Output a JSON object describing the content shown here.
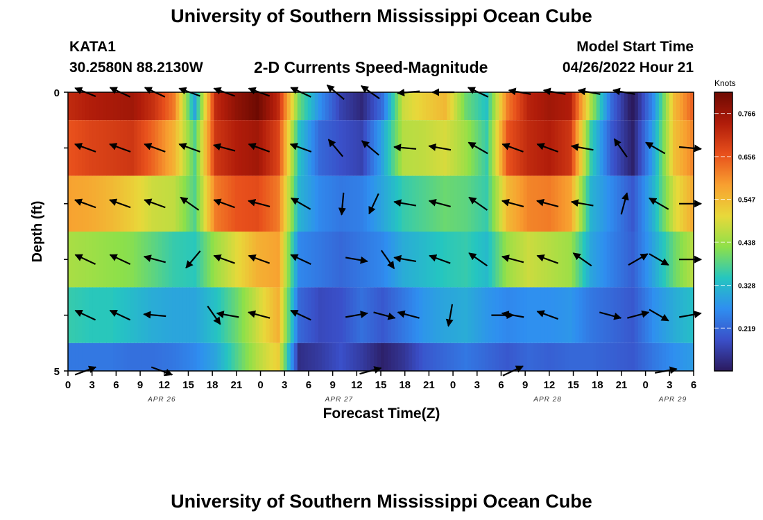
{
  "page": {
    "title": "University of Southern Mississippi Ocean Cube",
    "footer_title": "University of Southern Mississippi Ocean Cube",
    "station": "KATA1",
    "coords": "30.2580N  88.2130W",
    "model_label": "Model Start Time",
    "model_time": "04/26/2022 Hour 21"
  },
  "chart_data": {
    "type": "heatmap",
    "title": "2-D Currents Speed-Magnitude",
    "xlabel": "Forecast Time(Z)",
    "ylabel": "Depth (ft)",
    "units": "Knots",
    "x_hours": [
      0,
      90
    ],
    "x_tick_labels": [
      "0",
      "3",
      "6",
      "9",
      "12",
      "15",
      "18",
      "21",
      "0",
      "3",
      "6",
      "9",
      "12",
      "15",
      "18",
      "21",
      "0",
      "3",
      "6",
      "9",
      "12",
      "15",
      "18",
      "21",
      "0",
      "3",
      "6"
    ],
    "date_labels": [
      {
        "label": "APR 26",
        "hour": 13.5
      },
      {
        "label": "APR 27",
        "hour": 39
      },
      {
        "label": "APR 28",
        "hour": 69
      },
      {
        "label": "APR 29",
        "hour": 87
      }
    ],
    "y_tick_labels": [
      "0",
      "5"
    ],
    "ylim": [
      0,
      5
    ],
    "colorbar": {
      "range": [
        0.11,
        0.82
      ],
      "ticks": [
        0.766,
        0.656,
        0.547,
        0.438,
        0.328,
        0.219
      ],
      "tick_labels": [
        "0.766",
        "0.656",
        "0.547",
        "0.438",
        "0.328",
        "0.219"
      ],
      "colors": [
        "#2b1a5e",
        "#3a4fc8",
        "#2f8ef0",
        "#25c6c0",
        "#8de04a",
        "#e8d93a",
        "#f8a030",
        "#e8501c",
        "#b01c0a",
        "#6e0a02"
      ]
    },
    "depth_rows": [
      {
        "top": 0.0,
        "bottom": 0.5,
        "hours": [
          0,
          3,
          6,
          9,
          12,
          15,
          18,
          21,
          24,
          27,
          30,
          33,
          36,
          39,
          42,
          45,
          48,
          51,
          54,
          57,
          60,
          63,
          66,
          69,
          72,
          75,
          78,
          81,
          84,
          87,
          90
        ],
        "values": [
          0.72,
          0.74,
          0.75,
          0.76,
          0.71,
          0.62,
          0.3,
          0.72,
          0.78,
          0.82,
          0.72,
          0.4,
          0.27,
          0.17,
          0.13,
          0.23,
          0.48,
          0.52,
          0.55,
          0.4,
          0.34,
          0.62,
          0.73,
          0.76,
          0.74,
          0.45,
          0.22,
          0.1,
          0.27,
          0.55,
          0.66
        ]
      },
      {
        "top": 0.5,
        "bottom": 1.5,
        "hours": [
          0,
          3,
          6,
          9,
          12,
          15,
          18,
          21,
          24,
          27,
          30,
          33,
          36,
          39,
          42,
          45,
          48,
          51,
          54,
          57,
          60,
          63,
          66,
          69,
          72,
          75,
          78,
          81,
          84,
          87,
          90
        ],
        "values": [
          0.66,
          0.68,
          0.69,
          0.7,
          0.64,
          0.56,
          0.38,
          0.7,
          0.74,
          0.76,
          0.68,
          0.34,
          0.22,
          0.19,
          0.17,
          0.3,
          0.46,
          0.47,
          0.49,
          0.44,
          0.36,
          0.66,
          0.72,
          0.74,
          0.7,
          0.36,
          0.2,
          0.12,
          0.3,
          0.54,
          0.62
        ]
      },
      {
        "top": 1.5,
        "bottom": 2.5,
        "hours": [
          0,
          3,
          6,
          9,
          12,
          15,
          18,
          21,
          24,
          27,
          30,
          33,
          36,
          39,
          42,
          45,
          48,
          51,
          54,
          57,
          60,
          63,
          66,
          69,
          72,
          75,
          78,
          81,
          84,
          87,
          90
        ],
        "values": [
          0.58,
          0.57,
          0.55,
          0.52,
          0.48,
          0.47,
          0.38,
          0.62,
          0.66,
          0.67,
          0.62,
          0.32,
          0.26,
          0.24,
          0.25,
          0.3,
          0.36,
          0.38,
          0.4,
          0.39,
          0.36,
          0.55,
          0.61,
          0.62,
          0.58,
          0.32,
          0.26,
          0.2,
          0.32,
          0.49,
          0.58
        ]
      },
      {
        "top": 2.5,
        "bottom": 3.5,
        "hours": [
          0,
          3,
          6,
          9,
          12,
          15,
          18,
          21,
          24,
          27,
          30,
          33,
          36,
          39,
          42,
          45,
          48,
          51,
          54,
          57,
          60,
          63,
          66,
          69,
          72,
          75,
          78,
          81,
          84,
          87,
          90
        ],
        "values": [
          0.45,
          0.44,
          0.43,
          0.42,
          0.39,
          0.36,
          0.35,
          0.44,
          0.5,
          0.56,
          0.58,
          0.26,
          0.24,
          0.22,
          0.24,
          0.26,
          0.31,
          0.33,
          0.35,
          0.36,
          0.33,
          0.44,
          0.48,
          0.46,
          0.44,
          0.3,
          0.25,
          0.21,
          0.3,
          0.4,
          0.47
        ]
      },
      {
        "top": 3.5,
        "bottom": 4.5,
        "hours": [
          0,
          3,
          6,
          9,
          12,
          15,
          18,
          21,
          24,
          27,
          30,
          33,
          36,
          39,
          42,
          45,
          48,
          51,
          54,
          57,
          60,
          63,
          66,
          69,
          72,
          75,
          78,
          81,
          84,
          87,
          90
        ],
        "values": [
          0.36,
          0.35,
          0.35,
          0.33,
          0.31,
          0.3,
          0.3,
          0.34,
          0.4,
          0.48,
          0.56,
          0.22,
          0.18,
          0.19,
          0.23,
          0.2,
          0.24,
          0.28,
          0.3,
          0.31,
          0.28,
          0.26,
          0.27,
          0.27,
          0.28,
          0.24,
          0.22,
          0.2,
          0.27,
          0.31,
          0.34
        ]
      },
      {
        "top": 4.5,
        "bottom": 5.0,
        "hours": [
          0,
          3,
          6,
          9,
          12,
          15,
          18,
          21,
          24,
          27,
          30,
          33,
          36,
          39,
          42,
          45,
          48,
          51,
          54,
          57,
          60,
          63,
          66,
          69,
          72,
          75,
          78,
          81,
          84,
          87,
          90
        ],
        "values": [
          0.24,
          0.24,
          0.24,
          0.23,
          0.23,
          0.24,
          0.26,
          0.3,
          0.38,
          0.46,
          0.52,
          0.14,
          0.16,
          0.19,
          0.16,
          0.12,
          0.15,
          0.2,
          0.22,
          0.24,
          0.22,
          0.2,
          0.22,
          0.21,
          0.22,
          0.22,
          0.21,
          0.2,
          0.24,
          0.27,
          0.29
        ]
      }
    ],
    "vectors": [
      {
        "depth": 0.0,
        "hour": 2.5,
        "dir": -158,
        "len": 0.32
      },
      {
        "depth": 0.0,
        "hour": 7.5,
        "dir": -155,
        "len": 0.32
      },
      {
        "depth": 0.0,
        "hour": 12.5,
        "dir": -155,
        "len": 0.32
      },
      {
        "depth": 0.0,
        "hour": 17.5,
        "dir": -160,
        "len": 0.32
      },
      {
        "depth": 0.0,
        "hour": 22.5,
        "dir": -160,
        "len": 0.32
      },
      {
        "depth": 0.0,
        "hour": 27.5,
        "dir": -160,
        "len": 0.32
      },
      {
        "depth": 0.0,
        "hour": 33.5,
        "dir": -155,
        "len": 0.32
      },
      {
        "depth": 0.0,
        "hour": 38.5,
        "dir": -140,
        "len": 0.32
      },
      {
        "depth": 0.0,
        "hour": 43.5,
        "dir": -145,
        "len": 0.32
      },
      {
        "depth": 0.0,
        "hour": 49,
        "dir": 175,
        "len": 0.32
      },
      {
        "depth": 0.0,
        "hour": 54,
        "dir": -180,
        "len": 0.32
      },
      {
        "depth": 0.0,
        "hour": 59,
        "dir": -155,
        "len": 0.32
      },
      {
        "depth": 0.0,
        "hour": 65,
        "dir": -170,
        "len": 0.32
      },
      {
        "depth": 0.0,
        "hour": 70,
        "dir": -170,
        "len": 0.32
      },
      {
        "depth": 0.0,
        "hour": 75,
        "dir": -170,
        "len": 0.32
      },
      {
        "depth": 0.0,
        "hour": 80,
        "dir": -170,
        "len": 0.32
      },
      {
        "depth": 1.0,
        "hour": 2.5,
        "dir": -160,
        "len": 0.32
      },
      {
        "depth": 1.0,
        "hour": 7.5,
        "dir": -160,
        "len": 0.32
      },
      {
        "depth": 1.0,
        "hour": 12.5,
        "dir": -160,
        "len": 0.32
      },
      {
        "depth": 1.0,
        "hour": 17.5,
        "dir": -160,
        "len": 0.32
      },
      {
        "depth": 1.0,
        "hour": 22.5,
        "dir": -165,
        "len": 0.32
      },
      {
        "depth": 1.0,
        "hour": 27.5,
        "dir": -160,
        "len": 0.32
      },
      {
        "depth": 1.0,
        "hour": 33.5,
        "dir": -160,
        "len": 0.32
      },
      {
        "depth": 1.0,
        "hour": 38.5,
        "dir": -130,
        "len": 0.32
      },
      {
        "depth": 1.0,
        "hour": 43.5,
        "dir": -140,
        "len": 0.32
      },
      {
        "depth": 1.0,
        "hour": 48.5,
        "dir": -175,
        "len": 0.32
      },
      {
        "depth": 1.0,
        "hour": 53.5,
        "dir": -170,
        "len": 0.32
      },
      {
        "depth": 1.0,
        "hour": 59,
        "dir": -150,
        "len": 0.32
      },
      {
        "depth": 1.0,
        "hour": 64,
        "dir": -160,
        "len": 0.32
      },
      {
        "depth": 1.0,
        "hour": 69,
        "dir": -160,
        "len": 0.32
      },
      {
        "depth": 1.0,
        "hour": 74,
        "dir": -170,
        "len": 0.32
      },
      {
        "depth": 1.0,
        "hour": 79.5,
        "dir": -125,
        "len": 0.32
      },
      {
        "depth": 1.0,
        "hour": 84.5,
        "dir": -150,
        "len": 0.32
      },
      {
        "depth": 1.0,
        "hour": 89.5,
        "dir": 5,
        "len": 0.32
      },
      {
        "depth": 2.0,
        "hour": 2.5,
        "dir": -160,
        "len": 0.32
      },
      {
        "depth": 2.0,
        "hour": 7.5,
        "dir": -160,
        "len": 0.32
      },
      {
        "depth": 2.0,
        "hour": 12.5,
        "dir": -160,
        "len": 0.32
      },
      {
        "depth": 2.0,
        "hour": 17.5,
        "dir": -145,
        "len": 0.32
      },
      {
        "depth": 2.0,
        "hour": 22.5,
        "dir": -160,
        "len": 0.32
      },
      {
        "depth": 2.0,
        "hour": 27.5,
        "dir": -165,
        "len": 0.32
      },
      {
        "depth": 2.0,
        "hour": 33.5,
        "dir": -150,
        "len": 0.32
      },
      {
        "depth": 2.0,
        "hour": 39.5,
        "dir": 95,
        "len": 0.32
      },
      {
        "depth": 2.0,
        "hour": 44,
        "dir": 115,
        "len": 0.32
      },
      {
        "depth": 2.0,
        "hour": 48.5,
        "dir": -170,
        "len": 0.32
      },
      {
        "depth": 2.0,
        "hour": 53.5,
        "dir": -165,
        "len": 0.32
      },
      {
        "depth": 2.0,
        "hour": 59,
        "dir": -145,
        "len": 0.32
      },
      {
        "depth": 2.0,
        "hour": 64,
        "dir": -165,
        "len": 0.32
      },
      {
        "depth": 2.0,
        "hour": 69,
        "dir": -165,
        "len": 0.32
      },
      {
        "depth": 2.0,
        "hour": 74,
        "dir": -170,
        "len": 0.32
      },
      {
        "depth": 2.0,
        "hour": 80,
        "dir": -75,
        "len": 0.32
      },
      {
        "depth": 2.0,
        "hour": 85,
        "dir": -150,
        "len": 0.32
      },
      {
        "depth": 2.0,
        "hour": 89.5,
        "dir": 0,
        "len": 0.32
      },
      {
        "depth": 3.0,
        "hour": 2.5,
        "dir": -155,
        "len": 0.32
      },
      {
        "depth": 3.0,
        "hour": 7.5,
        "dir": -155,
        "len": 0.32
      },
      {
        "depth": 3.0,
        "hour": 12.5,
        "dir": -165,
        "len": 0.32
      },
      {
        "depth": 3.0,
        "hour": 18,
        "dir": 130,
        "len": 0.32
      },
      {
        "depth": 3.0,
        "hour": 22.5,
        "dir": -160,
        "len": 0.32
      },
      {
        "depth": 3.0,
        "hour": 27.5,
        "dir": -160,
        "len": 0.32
      },
      {
        "depth": 3.0,
        "hour": 33.5,
        "dir": -155,
        "len": 0.32
      },
      {
        "depth": 3.0,
        "hour": 41.5,
        "dir": 10,
        "len": 0.32
      },
      {
        "depth": 3.0,
        "hour": 46,
        "dir": 55,
        "len": 0.32
      },
      {
        "depth": 3.0,
        "hour": 48.5,
        "dir": -170,
        "len": 0.32
      },
      {
        "depth": 3.0,
        "hour": 53.5,
        "dir": -160,
        "len": 0.32
      },
      {
        "depth": 3.0,
        "hour": 59,
        "dir": -145,
        "len": 0.32
      },
      {
        "depth": 3.0,
        "hour": 64,
        "dir": -165,
        "len": 0.32
      },
      {
        "depth": 3.0,
        "hour": 69,
        "dir": -160,
        "len": 0.32
      },
      {
        "depth": 3.0,
        "hour": 74,
        "dir": -145,
        "len": 0.32
      },
      {
        "depth": 3.0,
        "hour": 82,
        "dir": -30,
        "len": 0.32
      },
      {
        "depth": 3.0,
        "hour": 85,
        "dir": 30,
        "len": 0.32
      },
      {
        "depth": 3.0,
        "hour": 89.5,
        "dir": 0,
        "len": 0.32
      },
      {
        "depth": 4.0,
        "hour": 2.5,
        "dir": -155,
        "len": 0.32
      },
      {
        "depth": 4.0,
        "hour": 7.5,
        "dir": -155,
        "len": 0.32
      },
      {
        "depth": 4.0,
        "hour": 12.5,
        "dir": -175,
        "len": 0.32
      },
      {
        "depth": 4.0,
        "hour": 21,
        "dir": 55,
        "len": 0.32
      },
      {
        "depth": 4.0,
        "hour": 23,
        "dir": -170,
        "len": 0.32
      },
      {
        "depth": 4.0,
        "hour": 27.5,
        "dir": -165,
        "len": 0.32
      },
      {
        "depth": 4.0,
        "hour": 33.5,
        "dir": -155,
        "len": 0.32
      },
      {
        "depth": 4.0,
        "hour": 41.5,
        "dir": -10,
        "len": 0.32
      },
      {
        "depth": 4.0,
        "hour": 45.5,
        "dir": 15,
        "len": 0.32
      },
      {
        "depth": 4.0,
        "hour": 49,
        "dir": -165,
        "len": 0.32
      },
      {
        "depth": 4.0,
        "hour": 55,
        "dir": 100,
        "len": 0.32
      },
      {
        "depth": 4.0,
        "hour": 62.5,
        "dir": 0,
        "len": 0.32
      },
      {
        "depth": 4.0,
        "hour": 64,
        "dir": -170,
        "len": 0.32
      },
      {
        "depth": 4.0,
        "hour": 69,
        "dir": -160,
        "len": 0.32
      },
      {
        "depth": 4.0,
        "hour": 78,
        "dir": 15,
        "len": 0.32
      },
      {
        "depth": 4.0,
        "hour": 82,
        "dir": -15,
        "len": 0.32
      },
      {
        "depth": 4.0,
        "hour": 85,
        "dir": 30,
        "len": 0.32
      },
      {
        "depth": 4.0,
        "hour": 89.5,
        "dir": -10,
        "len": 0.32
      },
      {
        "depth": 5.0,
        "hour": 2.5,
        "dir": -20,
        "len": 0.32
      },
      {
        "depth": 5.0,
        "hour": 13.5,
        "dir": 20,
        "len": 0.32
      },
      {
        "depth": 5.0,
        "hour": 43.5,
        "dir": -15,
        "len": 0.32
      },
      {
        "depth": 5.0,
        "hour": 64,
        "dir": -25,
        "len": 0.32
      },
      {
        "depth": 5.0,
        "hour": 86,
        "dir": -10,
        "len": 0.32
      }
    ]
  }
}
